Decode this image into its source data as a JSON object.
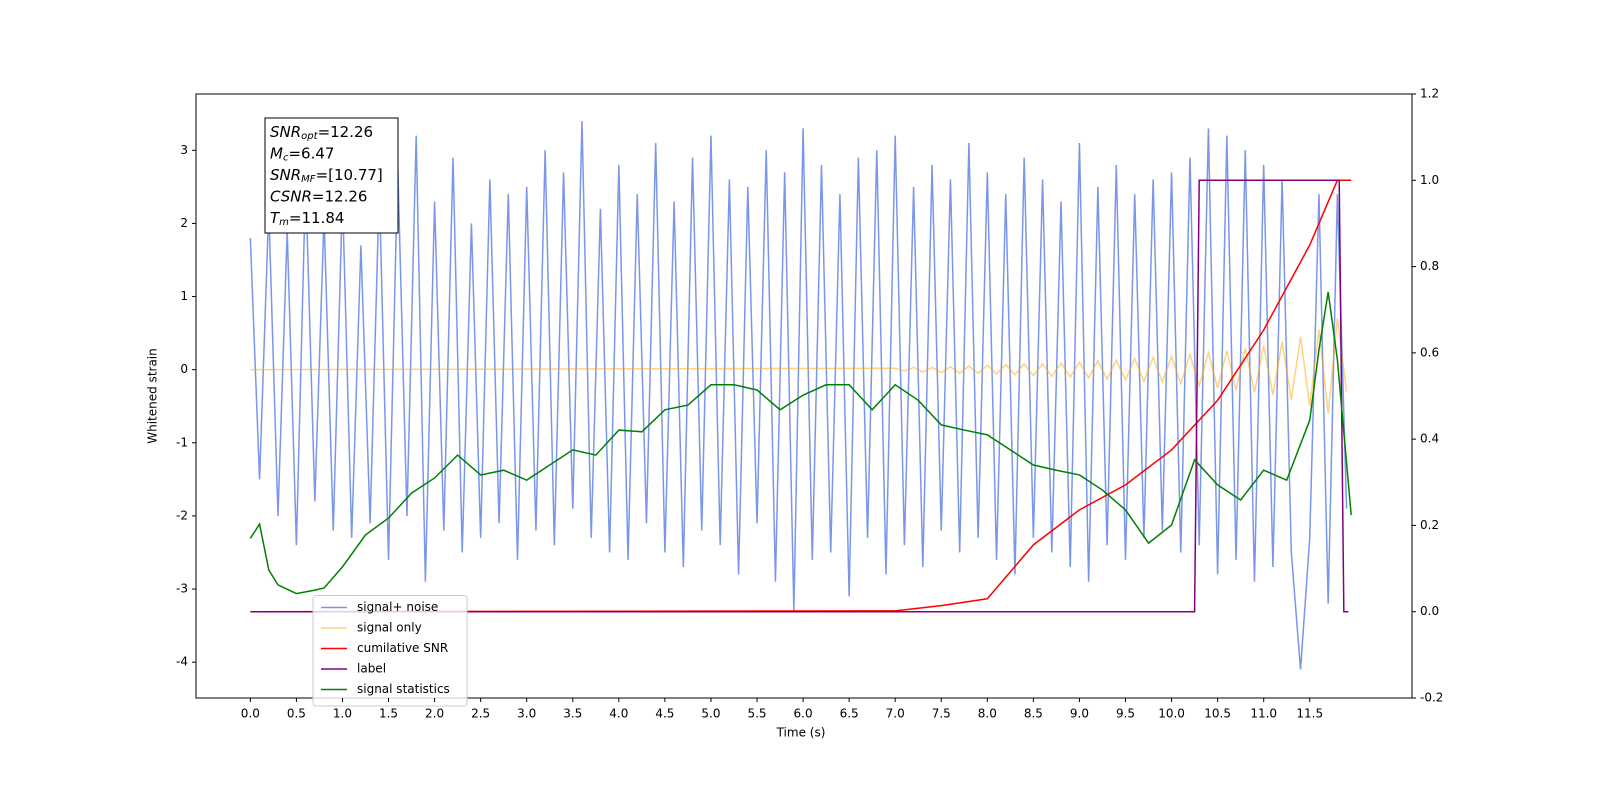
{
  "chart_data": {
    "type": "line",
    "xlabel": "Time (s)",
    "ylabel": "Whitened strain",
    "xlim": [
      -0.59,
      12.61
    ],
    "ylim": [
      -4.49,
      3.77
    ],
    "y2lim": [
      -0.2,
      1.2
    ],
    "xticks": [
      {
        "value": 0,
        "label": "0.0"
      },
      0.5,
      {
        "value": 1,
        "label": "1.0"
      },
      1.5,
      {
        "value": 2,
        "label": "2.0"
      },
      2.5,
      {
        "value": 3,
        "label": "3.0"
      },
      3.5,
      {
        "value": 4,
        "label": "4.0"
      },
      4.5,
      {
        "value": 5,
        "label": "5.0"
      },
      5.5,
      {
        "value": 6,
        "label": "6.0"
      },
      6.5,
      {
        "value": 7,
        "label": "7.0"
      },
      7.5,
      {
        "value": 8,
        "label": "8.0"
      },
      8.5,
      {
        "value": 9,
        "label": "9.0"
      },
      9.5,
      {
        "value": 10,
        "label": "10.0"
      },
      10.5,
      {
        "value": 11,
        "label": "11.0"
      },
      11.5
    ],
    "yticks": [
      -4,
      -3,
      -2,
      -1,
      0,
      1,
      2,
      3
    ],
    "y2ticks": [
      -0.2,
      0.0,
      0.2,
      0.4,
      0.6,
      0.8,
      1.0,
      1.2
    ],
    "legend_loc": "lower left",
    "annotation": [
      {
        "main": "SNR",
        "sub": "opt",
        "rest": "=12.26"
      },
      {
        "main": "M",
        "sub": "c",
        "rest": "=6.47"
      },
      {
        "main": "SNR",
        "sub": "MF",
        "rest": "=[10.77]"
      },
      {
        "main": "CSNR",
        "sub": "",
        "rest": "=12.26"
      },
      {
        "main": "T",
        "sub": "m",
        "rest": "=11.84"
      }
    ],
    "series": [
      {
        "name": "signal+ noise",
        "color": "#4169e1",
        "opacity": 0.7,
        "axis": "y",
        "x": [
          0,
          0.1,
          0.2,
          0.3,
          0.4,
          0.5,
          0.6,
          0.7,
          0.8,
          0.9,
          1,
          1.1,
          1.2,
          1.3,
          1.4,
          1.5,
          1.6,
          1.7,
          1.8,
          1.9,
          2,
          2.1,
          2.2,
          2.3,
          2.4,
          2.5,
          2.6,
          2.7,
          2.8,
          2.9,
          3,
          3.1,
          3.2,
          3.3,
          3.4,
          3.5,
          3.6,
          3.7,
          3.8,
          3.9,
          4,
          4.1,
          4.2,
          4.3,
          4.4,
          4.5,
          4.6,
          4.7,
          4.8,
          4.9,
          5,
          5.1,
          5.2,
          5.3,
          5.4,
          5.5,
          5.6,
          5.7,
          5.8,
          5.9,
          6,
          6.1,
          6.2,
          6.3,
          6.4,
          6.5,
          6.6,
          6.7,
          6.8,
          6.9,
          7,
          7.1,
          7.2,
          7.3,
          7.4,
          7.5,
          7.6,
          7.7,
          7.8,
          7.9,
          8,
          8.1,
          8.2,
          8.3,
          8.4,
          8.5,
          8.6,
          8.7,
          8.8,
          8.9,
          9,
          9.1,
          9.2,
          9.3,
          9.4,
          9.5,
          9.6,
          9.7,
          9.8,
          9.9,
          10,
          10.1,
          10.2,
          10.3,
          10.4,
          10.5,
          10.6,
          10.7,
          10.8,
          10.9,
          11,
          11.1,
          11.2,
          11.3,
          11.4,
          11.5,
          11.6,
          11.7,
          11.8,
          11.9
        ],
        "values": [
          1.8,
          -1.5,
          2.2,
          -2.0,
          1.9,
          -2.4,
          2.6,
          -1.8,
          2.1,
          -2.2,
          2.4,
          -2.3,
          1.7,
          -2.1,
          2.5,
          -2.6,
          2.8,
          -2.0,
          3.2,
          -2.9,
          2.3,
          -2.2,
          2.9,
          -2.5,
          2.0,
          -2.3,
          2.6,
          -2.1,
          2.4,
          -2.6,
          2.5,
          -2.2,
          3.0,
          -2.4,
          2.7,
          -1.9,
          3.4,
          -2.3,
          2.2,
          -2.5,
          2.8,
          -2.6,
          2.4,
          -2.1,
          3.1,
          -2.5,
          2.3,
          -2.7,
          2.9,
          -2.2,
          3.2,
          -2.4,
          2.6,
          -2.8,
          2.5,
          -2.1,
          3.0,
          -2.9,
          2.7,
          -3.3,
          3.3,
          -2.6,
          2.8,
          -2.5,
          2.4,
          -3.1,
          2.9,
          -2.3,
          3.0,
          -2.8,
          3.2,
          -2.4,
          2.5,
          -2.7,
          2.8,
          -2.2,
          2.6,
          -2.5,
          3.1,
          -2.3,
          2.7,
          -2.6,
          2.4,
          -2.8,
          2.9,
          -2.3,
          2.6,
          -2.5,
          2.3,
          -2.7,
          3.1,
          -2.9,
          2.5,
          -2.4,
          2.8,
          -2.6,
          2.4,
          -2.3,
          2.6,
          -2.2,
          2.7,
          -2.5,
          2.9,
          -2.4,
          3.3,
          -2.8,
          3.2,
          -2.6,
          3.0,
          -2.9,
          2.8,
          -2.7,
          2.6,
          -2.5,
          -4.1,
          -2.3,
          2.4,
          -3.2,
          2.4,
          -1.9
        ]
      },
      {
        "name": "signal only",
        "color": "#ffa500",
        "opacity": 0.5,
        "axis": "y",
        "x": [
          0,
          7,
          7.1,
          7.2,
          7.3,
          7.4,
          7.5,
          7.6,
          7.7,
          7.8,
          7.9,
          8,
          8.1,
          8.2,
          8.3,
          8.4,
          8.5,
          8.6,
          8.7,
          8.8,
          8.9,
          9,
          9.1,
          9.2,
          9.3,
          9.4,
          9.5,
          9.6,
          9.7,
          9.8,
          9.9,
          10,
          10.1,
          10.2,
          10.3,
          10.4,
          10.5,
          10.6,
          10.7,
          10.8,
          10.9,
          11,
          11.1,
          11.2,
          11.3,
          11.4,
          11.5,
          11.6,
          11.7,
          11.8,
          11.9
        ],
        "values": [
          0,
          0.02,
          -0.02,
          0.03,
          -0.03,
          0.03,
          -0.04,
          0.04,
          -0.05,
          0.05,
          -0.05,
          0.06,
          -0.06,
          0.07,
          -0.07,
          0.08,
          -0.08,
          0.08,
          -0.09,
          0.09,
          -0.1,
          0.1,
          -0.11,
          0.12,
          -0.13,
          0.13,
          -0.14,
          0.15,
          -0.16,
          0.17,
          -0.17,
          0.18,
          -0.19,
          0.21,
          -0.22,
          0.23,
          -0.25,
          0.26,
          -0.28,
          0.29,
          -0.31,
          0.33,
          -0.35,
          0.38,
          -0.41,
          0.45,
          -0.5,
          0.55,
          -0.6,
          0.7,
          -0.3
        ]
      },
      {
        "name": "cumilative SNR",
        "color": "#ff0000",
        "axis": "y2",
        "x": [
          0,
          7,
          7.5,
          8,
          8.5,
          9,
          9.5,
          10,
          10.5,
          11,
          11.5,
          11.8,
          11.95
        ],
        "values": [
          0,
          0.002,
          0.014,
          0.03,
          0.155,
          0.236,
          0.294,
          0.375,
          0.49,
          0.653,
          0.85,
          1.0,
          1.0
        ]
      },
      {
        "name": "label",
        "color": "#800080",
        "axis": "y2",
        "x": [
          0,
          10.25,
          10.3,
          11.82,
          11.87,
          11.92
        ],
        "values": [
          0,
          0,
          1,
          1,
          0,
          0
        ]
      },
      {
        "name": "signal statistics",
        "color": "#008000",
        "axis": "y2",
        "x": [
          0,
          0.1,
          0.2,
          0.3,
          0.5,
          0.7,
          0.8,
          1,
          1.25,
          1.5,
          1.75,
          2,
          2.25,
          2.5,
          2.75,
          3,
          3.25,
          3.5,
          3.75,
          4,
          4.25,
          4.5,
          4.75,
          5,
          5.25,
          5.5,
          5.75,
          6,
          6.25,
          6.5,
          6.75,
          7,
          7.25,
          7.5,
          7.75,
          8,
          8.25,
          8.5,
          8.75,
          9,
          9.25,
          9.5,
          9.75,
          10,
          10.25,
          10.5,
          10.75,
          11,
          11.25,
          11.5,
          11.6,
          11.7,
          11.8,
          11.95
        ],
        "values": [
          0.17,
          0.203,
          0.097,
          0.062,
          0.042,
          0.05,
          0.055,
          0.104,
          0.178,
          0.217,
          0.275,
          0.31,
          0.363,
          0.317,
          0.328,
          0.305,
          0.34,
          0.375,
          0.363,
          0.421,
          0.417,
          0.468,
          0.479,
          0.526,
          0.526,
          0.514,
          0.468,
          0.502,
          0.526,
          0.526,
          0.468,
          0.526,
          0.49,
          0.433,
          0.421,
          0.41,
          0.375,
          0.34,
          0.328,
          0.317,
          0.282,
          0.236,
          0.159,
          0.201,
          0.352,
          0.294,
          0.259,
          0.328,
          0.305,
          0.444,
          0.607,
          0.741,
          0.584,
          0.224
        ]
      }
    ]
  }
}
